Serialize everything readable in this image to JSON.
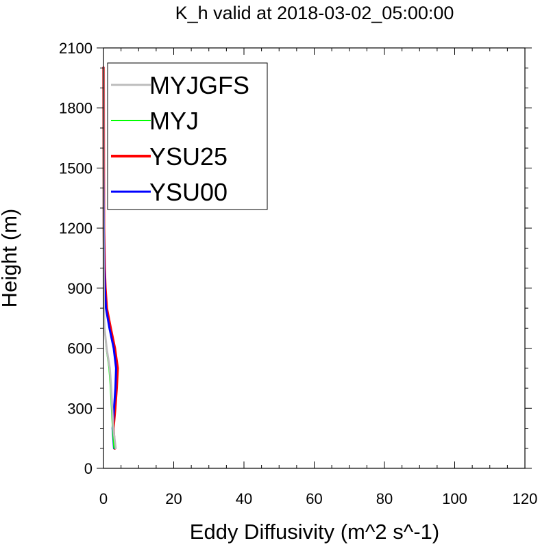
{
  "chart_data": {
    "type": "line",
    "title": "K_h valid at 2018-03-02_05:00:00",
    "xlabel": "Eddy Diffusivity (m^2 s^-1)",
    "ylabel": "Height (m)",
    "xlim": [
      0,
      120
    ],
    "ylim": [
      0,
      2100
    ],
    "xticks": [
      0,
      20,
      40,
      60,
      80,
      100,
      120
    ],
    "yticks": [
      0,
      300,
      600,
      900,
      1200,
      1500,
      1800,
      2100
    ],
    "xtick_labels": [
      "0",
      "20",
      "40",
      "60",
      "80",
      "100",
      "120"
    ],
    "ytick_labels": [
      "0",
      "300",
      "600",
      "900",
      "1200",
      "1500",
      "1800",
      "2100"
    ],
    "grid": false,
    "legend_position": "top-left",
    "series": [
      {
        "name": "MYJGFS",
        "color": "#bdbdbd",
        "points": [
          [
            3.5,
            100
          ],
          [
            2.8,
            200
          ],
          [
            2.5,
            300
          ],
          [
            2.2,
            400
          ],
          [
            1.8,
            500
          ],
          [
            0.9,
            600
          ],
          [
            0.3,
            700
          ],
          [
            0.1,
            800
          ],
          [
            0.05,
            1000
          ],
          [
            0,
            1400
          ],
          [
            0,
            2000
          ]
        ]
      },
      {
        "name": "MYJ",
        "color": "#00ff00",
        "points": [
          [
            3.0,
            100
          ],
          [
            2.6,
            200
          ],
          [
            2.3,
            300
          ],
          [
            2.0,
            400
          ],
          [
            1.6,
            500
          ],
          [
            0.8,
            600
          ],
          [
            0.3,
            700
          ],
          [
            0.1,
            800
          ],
          [
            0.05,
            1000
          ],
          [
            0,
            1400
          ],
          [
            0,
            2000
          ]
        ]
      },
      {
        "name": "YSU25",
        "color": "#ff0000",
        "points": [
          [
            3.2,
            100
          ],
          [
            2.8,
            200
          ],
          [
            3.3,
            300
          ],
          [
            3.7,
            400
          ],
          [
            4.0,
            500
          ],
          [
            3.2,
            600
          ],
          [
            2.0,
            700
          ],
          [
            0.9,
            800
          ],
          [
            0.5,
            900
          ],
          [
            0.3,
            1000
          ],
          [
            0.1,
            1200
          ],
          [
            0.05,
            1500
          ],
          [
            0,
            2000
          ]
        ]
      },
      {
        "name": "YSU00",
        "color": "#0000ff",
        "points": [
          [
            3.0,
            100
          ],
          [
            2.6,
            200
          ],
          [
            3.0,
            300
          ],
          [
            3.4,
            400
          ],
          [
            3.6,
            500
          ],
          [
            2.9,
            600
          ],
          [
            1.7,
            700
          ],
          [
            0.7,
            800
          ],
          [
            0.4,
            900
          ],
          [
            0.2,
            1000
          ],
          [
            0.1,
            1200
          ],
          [
            0.02,
            1500
          ],
          [
            0,
            2000
          ]
        ]
      }
    ]
  }
}
